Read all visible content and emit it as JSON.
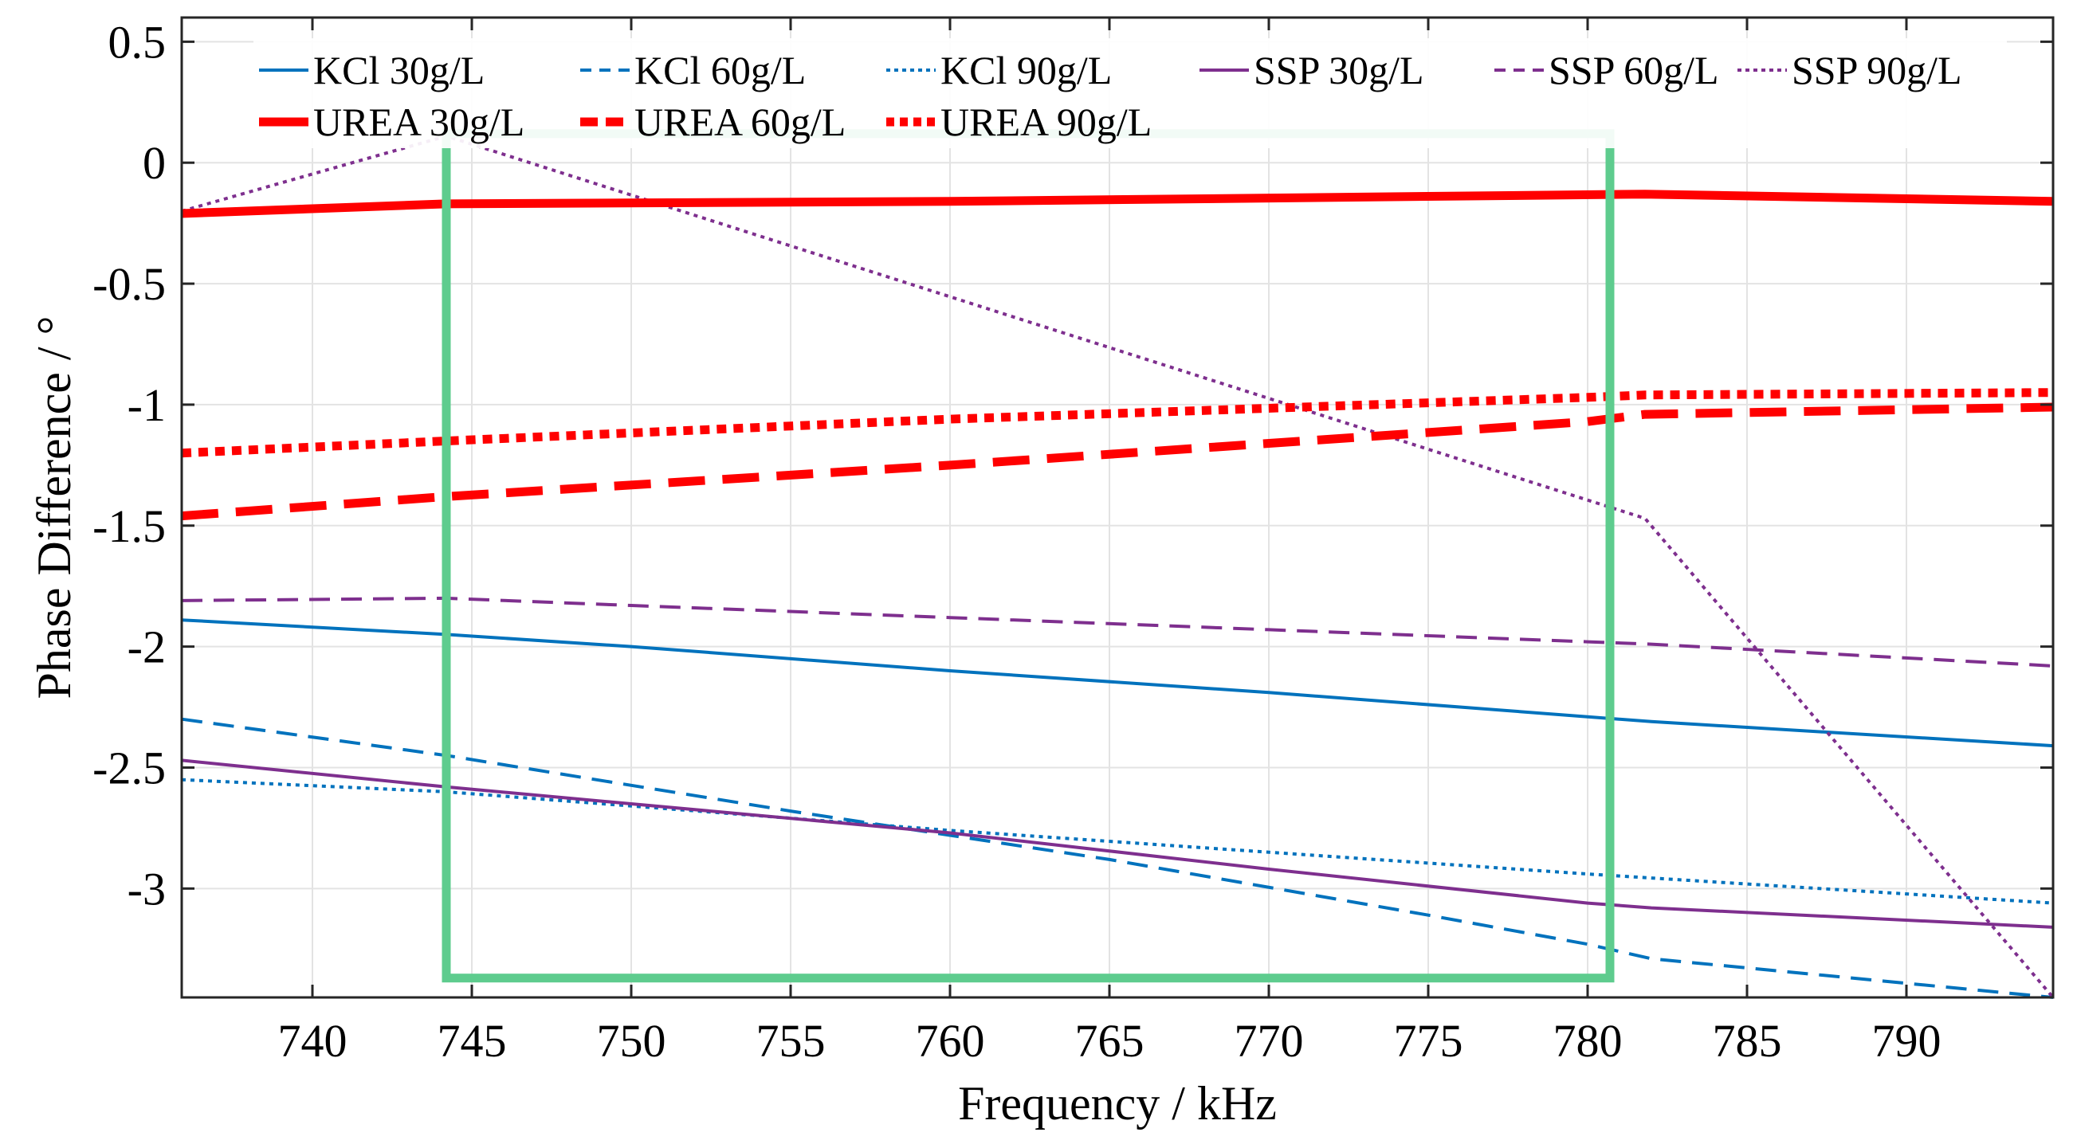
{
  "chart_data": {
    "type": "line",
    "title": "",
    "xlabel": "Frequency / kHz",
    "ylabel": "Phase Difference / °",
    "xlim": [
      735.9,
      794.6
    ],
    "ylim": [
      -3.45,
      0.6
    ],
    "xticks": [
      740,
      745,
      750,
      755,
      760,
      765,
      770,
      775,
      780,
      785,
      790
    ],
    "xtick_labels": [
      "740",
      "745",
      "750",
      "755",
      "760",
      "765",
      "770",
      "775",
      "780",
      "785",
      "790"
    ],
    "yticks": [
      0.5,
      0,
      -0.5,
      -1,
      -1.5,
      -2,
      -2.5,
      -3
    ],
    "ytick_labels": [
      "0.5",
      "0",
      "-0.5",
      "-1",
      "-1.5",
      "-2",
      "-2.5",
      "-3"
    ],
    "grid": true,
    "legend_position": "top",
    "colors": {
      "kcl": "#0072BD",
      "ssp": "#7E2F8E",
      "urea": "#FF0000",
      "highlight": "#5ECC8E"
    },
    "highlight_region": {
      "x": [
        744.2,
        780.7
      ],
      "y": [
        -3.37,
        0.12
      ]
    },
    "series": [
      {
        "name": "KCl 30g/L",
        "color": "#0072BD",
        "dash": "solid",
        "width": 4,
        "points": [
          [
            735.9,
            -1.89
          ],
          [
            744.2,
            -1.95
          ],
          [
            750,
            -2.0
          ],
          [
            760,
            -2.1
          ],
          [
            770,
            -2.19
          ],
          [
            780,
            -2.29
          ],
          [
            782,
            -2.31
          ],
          [
            794.6,
            -2.41
          ]
        ]
      },
      {
        "name": "KCl 60g/L",
        "color": "#0072BD",
        "dash": "dashed",
        "width": 4,
        "points": [
          [
            735.9,
            -2.3
          ],
          [
            744.2,
            -2.45
          ],
          [
            755,
            -2.68
          ],
          [
            765,
            -2.88
          ],
          [
            775,
            -3.11
          ],
          [
            780,
            -3.23
          ],
          [
            782,
            -3.29
          ],
          [
            794.6,
            -3.45
          ]
        ]
      },
      {
        "name": "KCl 90g/L",
        "color": "#0072BD",
        "dash": "dotted",
        "width": 4,
        "points": [
          [
            735.9,
            -2.55
          ],
          [
            744.2,
            -2.6
          ],
          [
            760,
            -2.76
          ],
          [
            780,
            -2.94
          ],
          [
            794.6,
            -3.06
          ]
        ]
      },
      {
        "name": "SSP 30g/L",
        "color": "#7E2F8E",
        "dash": "solid",
        "width": 4,
        "points": [
          [
            735.9,
            -2.47
          ],
          [
            744.2,
            -2.58
          ],
          [
            750,
            -2.65
          ],
          [
            760,
            -2.77
          ],
          [
            770,
            -2.92
          ],
          [
            780,
            -3.06
          ],
          [
            782,
            -3.08
          ],
          [
            794.6,
            -3.16
          ]
        ]
      },
      {
        "name": "SSP 60g/L",
        "color": "#7E2F8E",
        "dash": "dashed",
        "width": 4,
        "points": [
          [
            735.9,
            -1.81
          ],
          [
            744.2,
            -1.8
          ],
          [
            750,
            -1.83
          ],
          [
            760,
            -1.88
          ],
          [
            770,
            -1.93
          ],
          [
            780,
            -1.98
          ],
          [
            782,
            -1.99
          ],
          [
            794.6,
            -2.08
          ]
        ]
      },
      {
        "name": "SSP 90g/L",
        "color": "#7E2F8E",
        "dash": "dotted",
        "width": 4,
        "points": [
          [
            735.9,
            -0.2
          ],
          [
            744.2,
            0.11
          ],
          [
            781.8,
            -1.47
          ],
          [
            794.6,
            -3.45
          ]
        ]
      },
      {
        "name": "UREA 30g/L",
        "color": "#FF0000",
        "dash": "solid",
        "width": 11,
        "points": [
          [
            735.9,
            -0.21
          ],
          [
            744.2,
            -0.17
          ],
          [
            760,
            -0.16
          ],
          [
            781.8,
            -0.13
          ],
          [
            794.6,
            -0.16
          ]
        ]
      },
      {
        "name": "UREA 60g/L",
        "color": "#FF0000",
        "dash": "dashed",
        "width": 11,
        "points": [
          [
            735.9,
            -1.46
          ],
          [
            744.2,
            -1.38
          ],
          [
            760,
            -1.25
          ],
          [
            780,
            -1.07
          ],
          [
            781.8,
            -1.04
          ],
          [
            794.6,
            -1.01
          ]
        ]
      },
      {
        "name": "UREA 90g/L",
        "color": "#FF0000",
        "dash": "dotted",
        "width": 11,
        "points": [
          [
            735.9,
            -1.2
          ],
          [
            744.2,
            -1.15
          ],
          [
            760,
            -1.06
          ],
          [
            780,
            -0.97
          ],
          [
            781.8,
            -0.96
          ],
          [
            794.6,
            -0.95
          ]
        ]
      }
    ]
  }
}
